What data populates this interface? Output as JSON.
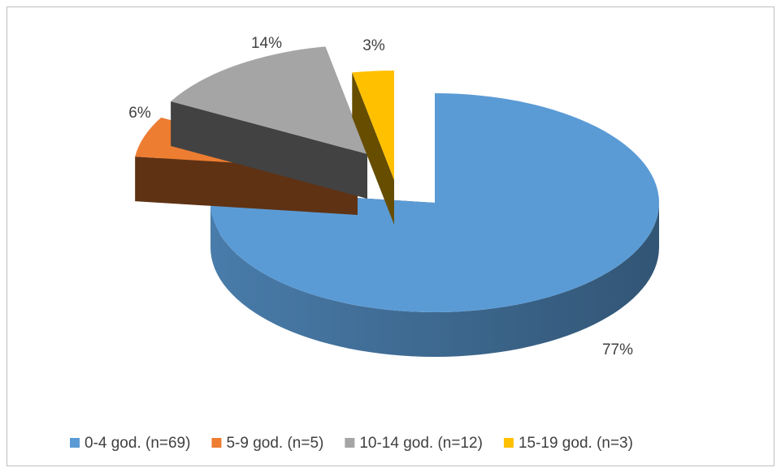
{
  "chart_data": {
    "type": "pie3d",
    "categories": [
      "0-4 god. (n=69)",
      "5-9 god. (n=5)",
      "10-14 god. (n=12)",
      "15-19 god. (n=3)"
    ],
    "values": [
      77,
      6,
      14,
      3
    ],
    "value_labels": [
      "77%",
      "6%",
      "14%",
      "3%"
    ],
    "colors": [
      "#5b9bd5",
      "#ed7d31",
      "#a5a5a5",
      "#ffc000"
    ],
    "legend": "bottom"
  }
}
